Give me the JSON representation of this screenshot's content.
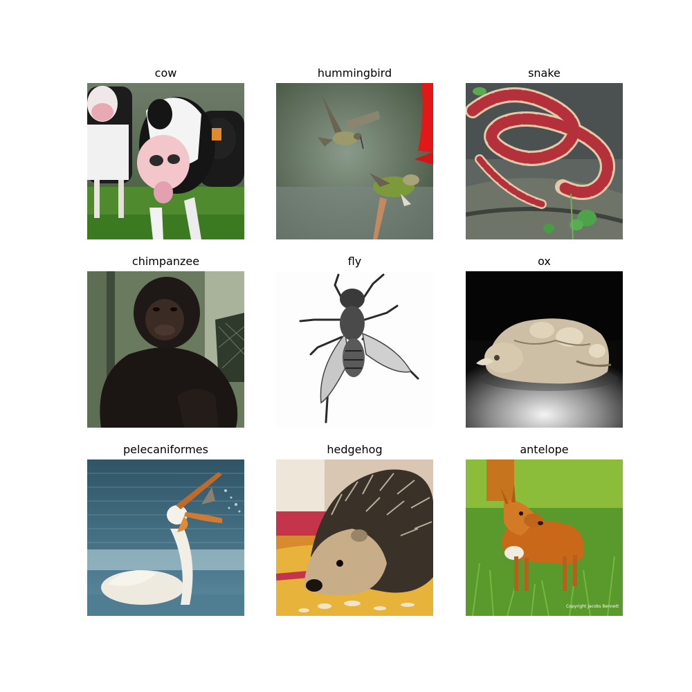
{
  "grid": {
    "panels": [
      {
        "label": "cow",
        "icon": "cow-photo"
      },
      {
        "label": "hummingbird",
        "icon": "hummingbird-photo"
      },
      {
        "label": "snake",
        "icon": "snake-photo"
      },
      {
        "label": "chimpanzee",
        "icon": "chimpanzee-photo"
      },
      {
        "label": "fly",
        "icon": "fly-illustration"
      },
      {
        "label": "ox",
        "icon": "ox-figurine-photo"
      },
      {
        "label": "pelecaniformes",
        "icon": "pelican-photo"
      },
      {
        "label": "hedgehog",
        "icon": "hedgehog-photo"
      },
      {
        "label": "antelope",
        "icon": "antelope-photo"
      }
    ]
  },
  "antelope_photo": {
    "watermark": "Copyright Jacobs Bennett"
  }
}
